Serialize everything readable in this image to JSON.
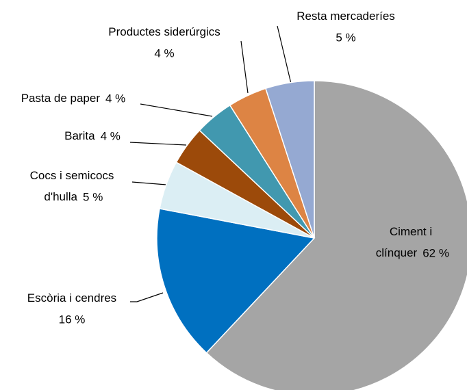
{
  "chart_data": {
    "type": "pie",
    "categories": [
      "Ciment i clínquer",
      "Escòria i cendres",
      "Cocs i semicocs d'hulla",
      "Barita",
      "Pasta de paper",
      "Productes siderúrgics",
      "Resta mercaderíes"
    ],
    "values": [
      62,
      16,
      5,
      4,
      4,
      4,
      5
    ],
    "value_labels": [
      "62 %",
      "16 %",
      "5 %",
      "4 %",
      "4 %",
      "4 %",
      "5 %"
    ],
    "colors": [
      "#a5a5a5",
      "#0070c0",
      "#dbeef4",
      "#9c4a0a",
      "#4198af",
      "#dd8444",
      "#95a9d2"
    ]
  }
}
